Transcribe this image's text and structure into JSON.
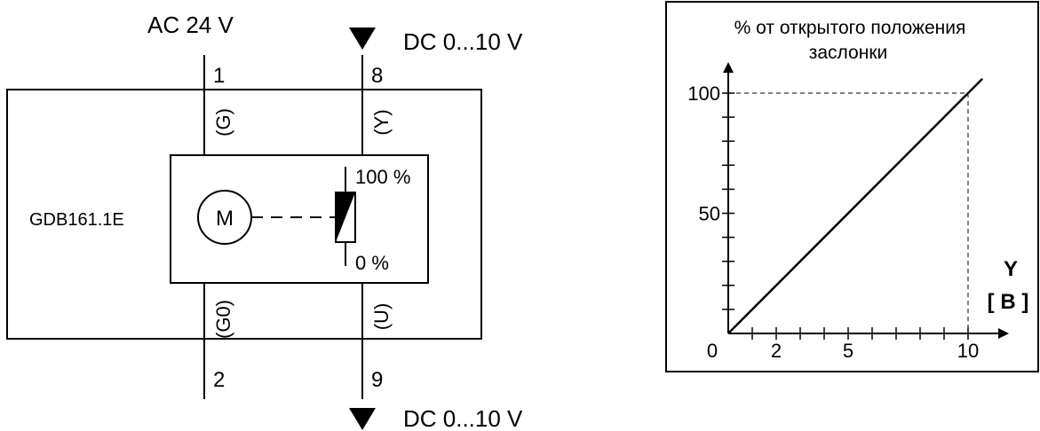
{
  "wiring": {
    "supply_label": "AC 24 V",
    "signal_in_label": "DC 0...10 V",
    "signal_out_label": "DC 0...10 V",
    "device_name": "GDB161.1E",
    "terminal_1": "1",
    "terminal_8": "8",
    "terminal_2": "2",
    "terminal_9": "9",
    "wire_g": "(G)",
    "wire_y": "(Y)",
    "wire_g0": "(G0)",
    "wire_u": "(U)",
    "motor_symbol": "M",
    "pot_top": "100 %",
    "pot_bottom": "0 %"
  },
  "chart_data": {
    "type": "line",
    "title_line1": "% от открытого положения",
    "title_line2": "заслонки",
    "xlabel_line1": "Y",
    "xlabel_line2": "[ B ]",
    "xlim": [
      0,
      10
    ],
    "ylim": [
      0,
      100
    ],
    "x_tick_labels": [
      "0",
      "2",
      "5",
      "10"
    ],
    "y_tick_labels": [
      "50",
      "100"
    ],
    "series": [
      {
        "x": [
          0,
          10.6
        ],
        "y": [
          0,
          106
        ]
      }
    ],
    "reference": {
      "x": 10,
      "y": 100
    }
  }
}
